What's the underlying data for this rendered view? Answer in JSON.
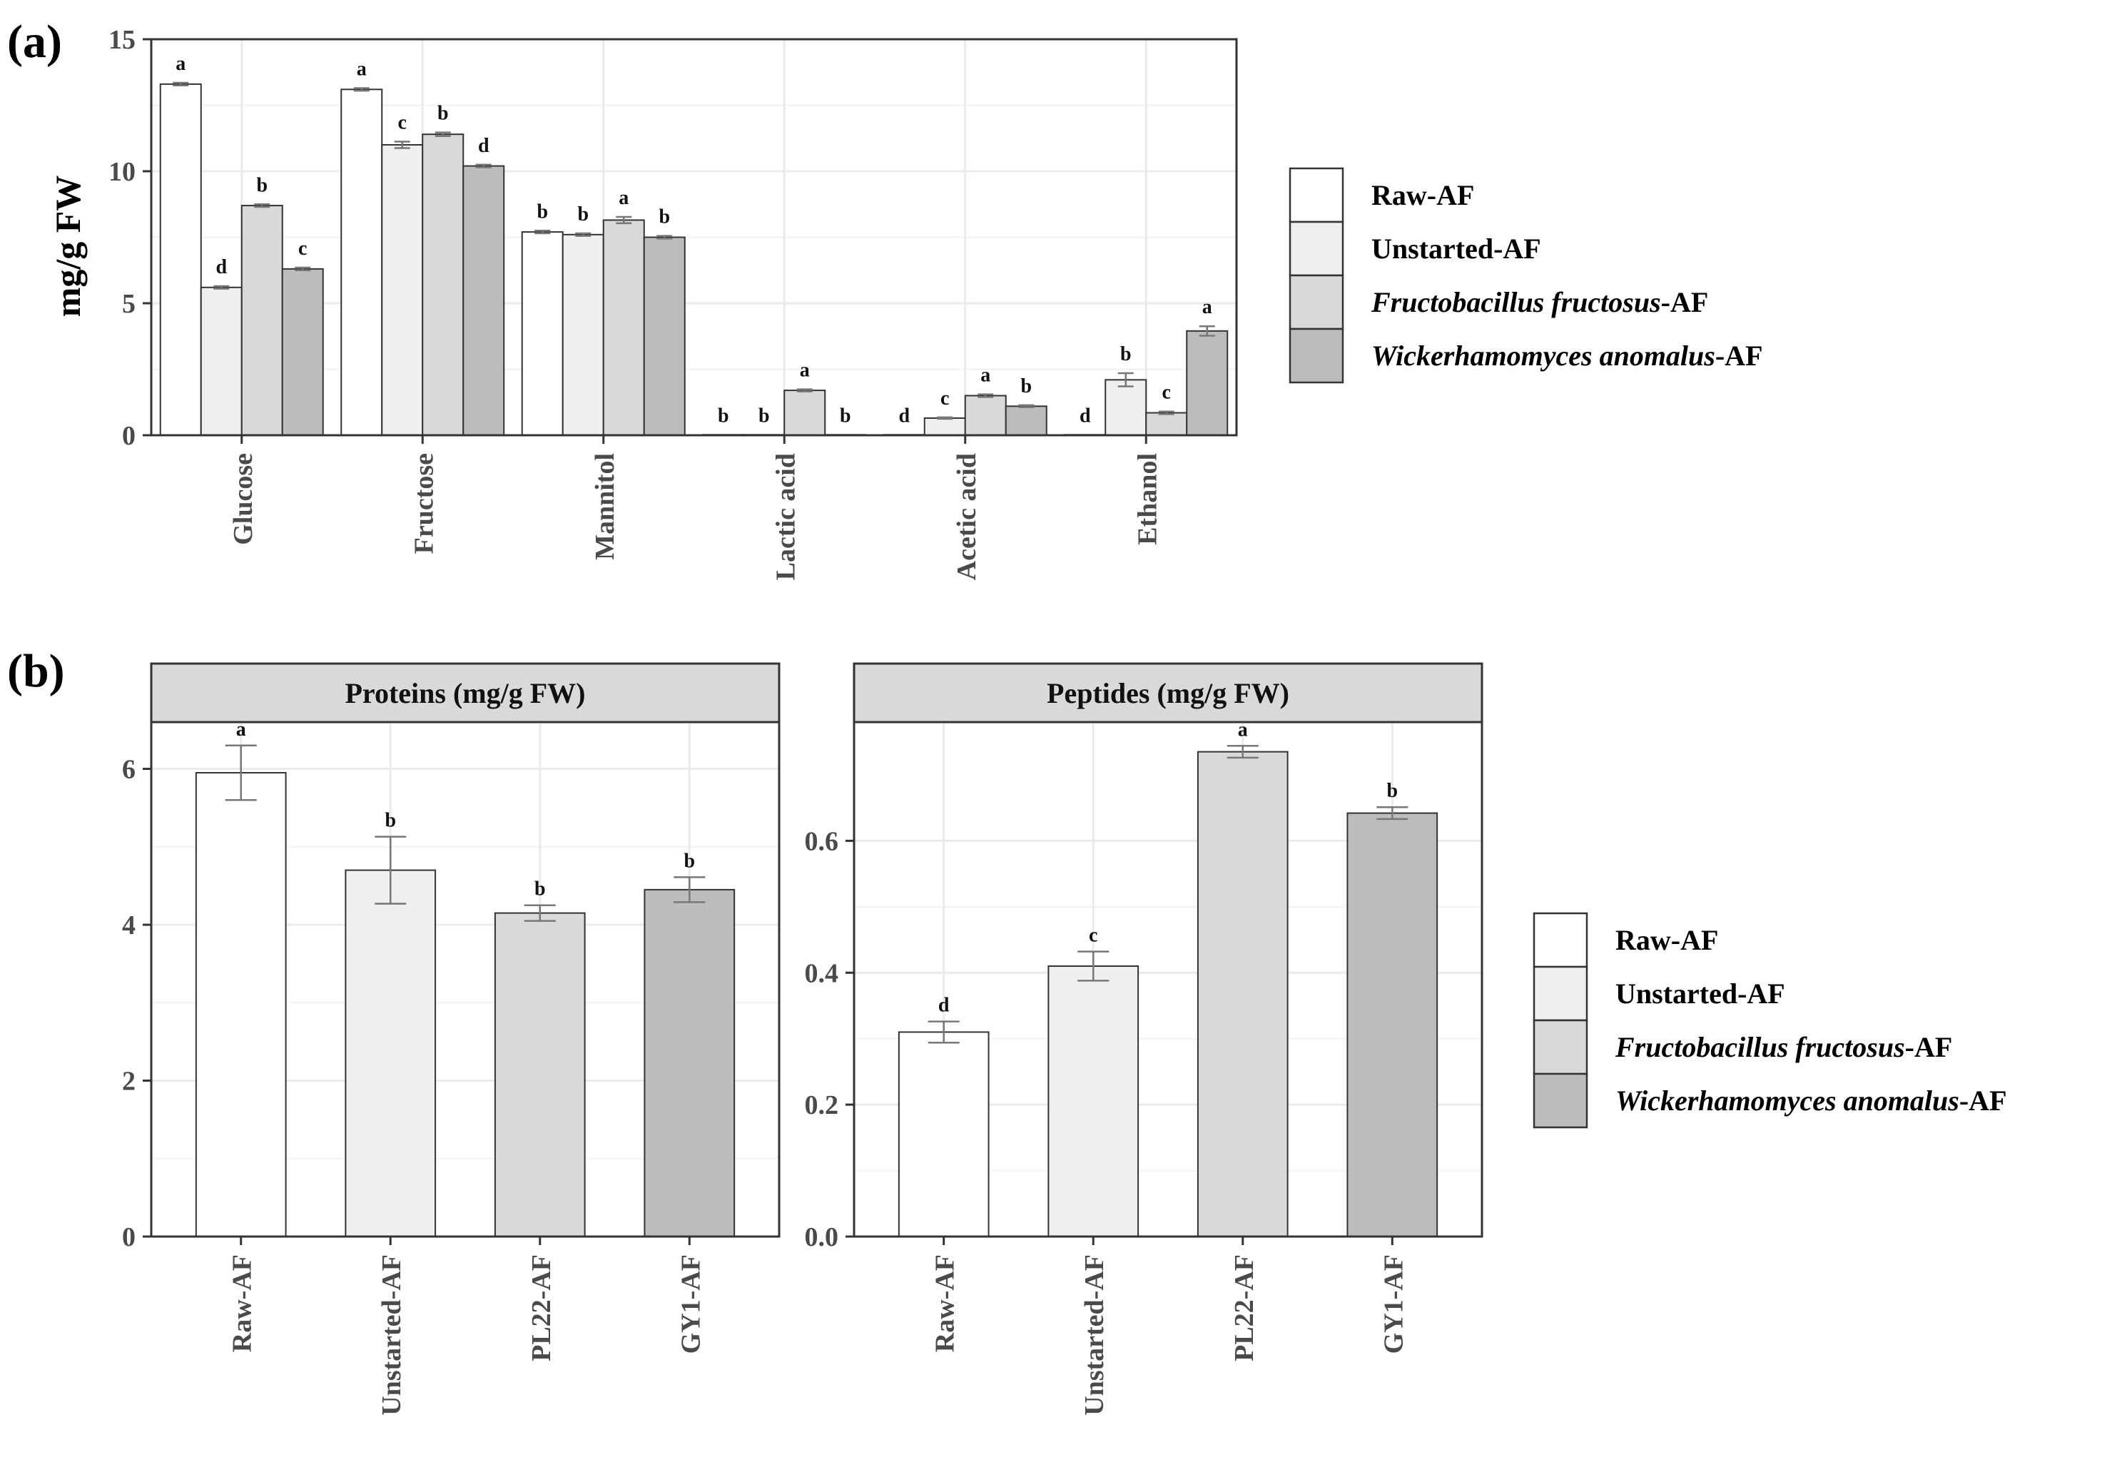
{
  "colors": {
    "raw": "#ffffff",
    "unstarted": "#efefef",
    "fructo": "#d9d9d9",
    "wicker": "#bcbcbc",
    "border": "#333333",
    "grid": "#ebebeb",
    "strip_bg": "#d9d9d9",
    "error": "#777777"
  },
  "legend": {
    "items": [
      {
        "prefix": "Raw-AF",
        "italic": "",
        "suffix": ""
      },
      {
        "prefix": "Unstarted-AF",
        "italic": "",
        "suffix": ""
      },
      {
        "prefix": "",
        "italic": "Fructobacillus fructosus",
        "suffix": "-AF"
      },
      {
        "prefix": "",
        "italic": "Wickerhamomyces anomalus",
        "suffix": "-AF"
      }
    ]
  },
  "chart_data": [
    {
      "panel_label": "(a)",
      "type": "bar",
      "ylabel": "mg/g FW",
      "ylim": [
        0,
        15
      ],
      "yticks": [
        0,
        5,
        10,
        15
      ],
      "ytick_labels": [
        "0",
        "5",
        "10",
        "15"
      ],
      "categories": [
        "Glucose",
        "Fructose",
        "Mannitol",
        "Lactic acid",
        "Acetic acid",
        "Ethanol"
      ],
      "series": [
        {
          "name": "Raw-AF",
          "values": [
            13.3,
            13.1,
            7.7,
            0.02,
            0.02,
            0.02
          ],
          "errors": [
            0.05,
            0.05,
            0.05,
            0,
            0,
            0
          ],
          "letters": [
            "a",
            "a",
            "b",
            "b",
            "d",
            "d"
          ]
        },
        {
          "name": "Unstarted-AF",
          "values": [
            5.6,
            11.0,
            7.6,
            0.02,
            0.65,
            2.1
          ],
          "errors": [
            0.05,
            0.12,
            0.05,
            0,
            0.03,
            0.25
          ],
          "letters": [
            "d",
            "c",
            "b",
            "b",
            "c",
            "b"
          ]
        },
        {
          "name": "Fructobacillus fructosus-AF",
          "values": [
            8.7,
            11.4,
            8.15,
            1.7,
            1.5,
            0.85
          ],
          "errors": [
            0.05,
            0.07,
            0.12,
            0.04,
            0.05,
            0.05
          ],
          "letters": [
            "b",
            "b",
            "a",
            "a",
            "a",
            "c"
          ]
        },
        {
          "name": "Wickerhamomyces anomalus-AF",
          "values": [
            6.3,
            10.2,
            7.5,
            0.02,
            1.1,
            3.95
          ],
          "errors": [
            0.05,
            0.05,
            0.05,
            0,
            0.04,
            0.18
          ],
          "letters": [
            "c",
            "d",
            "b",
            "b",
            "b",
            "a"
          ]
        }
      ]
    },
    {
      "panel_label": "(b)",
      "type": "bar",
      "title": "Proteins (mg/g FW)",
      "ylim": [
        0,
        6.6
      ],
      "yticks": [
        0,
        2,
        4,
        6
      ],
      "ytick_labels": [
        "0",
        "2",
        "4",
        "6"
      ],
      "categories": [
        "Raw-AF",
        "Unstarted-AF",
        "PL22-AF",
        "GY1-AF"
      ],
      "values": [
        5.95,
        4.7,
        4.15,
        4.45
      ],
      "errors": [
        0.35,
        0.43,
        0.1,
        0.16
      ],
      "letters": [
        "a",
        "b",
        "b",
        "b"
      ]
    },
    {
      "type": "bar",
      "title": "Peptides (mg/g FW)",
      "ylim": [
        0,
        0.78
      ],
      "yticks": [
        0,
        0.2,
        0.4,
        0.6
      ],
      "ytick_labels": [
        "0.0",
        "0.2",
        "0.4",
        "0.6"
      ],
      "categories": [
        "Raw-AF",
        "Unstarted-AF",
        "PL22-AF",
        "GY1-AF"
      ],
      "values": [
        0.31,
        0.41,
        0.735,
        0.642
      ],
      "errors": [
        0.016,
        0.022,
        0.009,
        0.009
      ],
      "letters": [
        "d",
        "c",
        "a",
        "b"
      ]
    }
  ]
}
